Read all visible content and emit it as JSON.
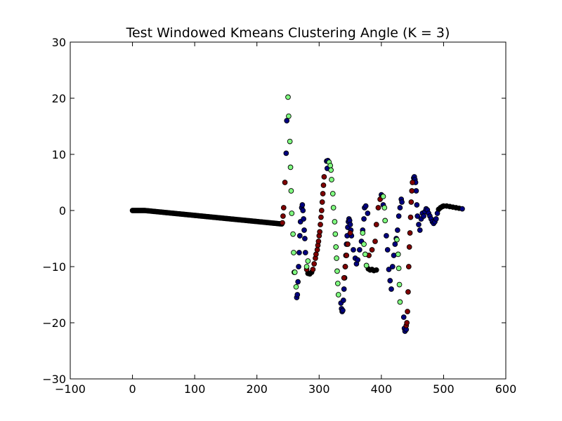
{
  "chart_data": {
    "type": "scatter",
    "title": "Test Windowed Kmeans Clustering Angle (K = 3)",
    "xlabel": "",
    "ylabel": "",
    "xlim": [
      -100,
      600
    ],
    "ylim": [
      -30,
      30
    ],
    "xticks": [
      -100,
      0,
      100,
      200,
      300,
      400,
      500,
      600
    ],
    "yticks": [
      -30,
      -20,
      -10,
      0,
      10,
      20,
      30
    ],
    "xtick_labels": [
      "−100",
      "0",
      "100",
      "200",
      "300",
      "400",
      "500",
      "600"
    ],
    "ytick_labels": [
      "−30",
      "−20",
      "−10",
      "0",
      "10",
      "20",
      "30"
    ],
    "grid": false,
    "colors": {
      "cluster_black": "#000000",
      "cluster_navy": "#000080",
      "cluster_darkred": "#800000",
      "cluster_lightgreen": "#80ff80"
    },
    "series": [
      {
        "color_key": "cluster_black",
        "points": [
          [
            0,
            0.0
          ],
          [
            240,
            -2.4
          ],
          [
            282,
            -11.2
          ],
          [
            285,
            -11.3
          ],
          [
            288,
            -11.0
          ],
          [
            379,
            -10.4
          ],
          [
            382,
            -10.6
          ],
          [
            385,
            -10.5
          ],
          [
            388,
            -10.7
          ],
          [
            392,
            -10.6
          ],
          [
            492,
            0.2
          ],
          [
            495,
            0.5
          ],
          [
            498,
            0.7
          ],
          [
            500,
            0.8
          ],
          [
            505,
            0.8
          ],
          [
            510,
            0.7
          ],
          [
            515,
            0.6
          ],
          [
            520,
            0.5
          ],
          [
            525,
            0.4
          ]
        ]
      },
      {
        "color_key": "cluster_navy",
        "points": [
          [
            247,
            10.2
          ],
          [
            248,
            16.0
          ],
          [
            264,
            -15.5
          ],
          [
            265,
            -15.0
          ],
          [
            266,
            -12.7
          ],
          [
            267,
            -10.0
          ],
          [
            268,
            -7.5
          ],
          [
            269,
            -4.5
          ],
          [
            270,
            -2.0
          ],
          [
            272,
            0.5
          ],
          [
            273,
            1.0
          ],
          [
            274,
            0.0
          ],
          [
            275,
            -1.5
          ],
          [
            276,
            -3.5
          ],
          [
            277,
            -5.0
          ],
          [
            278,
            -7.5
          ],
          [
            312,
            8.8
          ],
          [
            313,
            7.5
          ],
          [
            314,
            8.9
          ],
          [
            335,
            -16.5
          ],
          [
            336,
            -17.5
          ],
          [
            337,
            -18.0
          ],
          [
            338,
            -17.8
          ],
          [
            339,
            -16.0
          ],
          [
            340,
            -14.0
          ],
          [
            341,
            -12.0
          ],
          [
            342,
            -10.0
          ],
          [
            343,
            -8.0
          ],
          [
            344,
            -6.0
          ],
          [
            345,
            -4.5
          ],
          [
            346,
            -3.0
          ],
          [
            347,
            -2.0
          ],
          [
            348,
            -1.5
          ],
          [
            349,
            -1.8
          ],
          [
            350,
            -2.5
          ],
          [
            351,
            -3.5
          ],
          [
            352,
            -4.5
          ],
          [
            355,
            -7.0
          ],
          [
            358,
            -8.5
          ],
          [
            360,
            -9.5
          ],
          [
            362,
            -8.8
          ],
          [
            365,
            -7.0
          ],
          [
            368,
            -5.5
          ],
          [
            370,
            -3.5
          ],
          [
            372,
            -1.5
          ],
          [
            373,
            0.5
          ],
          [
            375,
            0.8
          ],
          [
            378,
            -0.5
          ],
          [
            400,
            2.8
          ],
          [
            402,
            2.5
          ],
          [
            403,
            1.0
          ],
          [
            408,
            -4.5
          ],
          [
            410,
            -7.0
          ],
          [
            412,
            -10.5
          ],
          [
            414,
            -12.5
          ],
          [
            416,
            -14.0
          ],
          [
            418,
            -10.0
          ],
          [
            420,
            -8.0
          ],
          [
            422,
            -6.0
          ],
          [
            424,
            -5.0
          ],
          [
            426,
            -3.5
          ],
          [
            428,
            -1.0
          ],
          [
            430,
            0.5
          ],
          [
            432,
            2.0
          ],
          [
            433,
            1.5
          ],
          [
            436,
            -19.0
          ],
          [
            437,
            -21.0
          ],
          [
            438,
            -21.5
          ],
          [
            440,
            -21.2
          ],
          [
            452,
            5.8
          ],
          [
            453,
            6.0
          ],
          [
            454,
            5.5
          ],
          [
            455,
            5.0
          ],
          [
            456,
            3.5
          ],
          [
            457,
            1.0
          ],
          [
            458,
            -1.0
          ],
          [
            460,
            -2.5
          ],
          [
            462,
            -3.5
          ],
          [
            464,
            -1.5
          ],
          [
            466,
            -0.5
          ],
          [
            468,
            -1.0
          ],
          [
            470,
            -0.2
          ],
          [
            472,
            0.3
          ],
          [
            474,
            0.1
          ],
          [
            476,
            -0.5
          ],
          [
            478,
            -1.0
          ],
          [
            480,
            -1.5
          ],
          [
            482,
            -2.0
          ],
          [
            484,
            -2.3
          ],
          [
            486,
            -2.0
          ],
          [
            488,
            -1.5
          ],
          [
            490,
            -0.5
          ],
          [
            530,
            0.3
          ]
        ]
      },
      {
        "color_key": "cluster_darkred",
        "points": [
          [
            241,
            -2.2
          ],
          [
            242,
            -1.0
          ],
          [
            243,
            0.5
          ],
          [
            245,
            5.0
          ],
          [
            280,
            -10.5
          ],
          [
            290,
            -10.5
          ],
          [
            292,
            -9.5
          ],
          [
            294,
            -8.5
          ],
          [
            295,
            -7.8
          ],
          [
            297,
            -7.0
          ],
          [
            298,
            -6.2
          ],
          [
            299,
            -5.5
          ],
          [
            300,
            -4.5
          ],
          [
            301,
            -3.8
          ],
          [
            302,
            -2.5
          ],
          [
            303,
            -1.2
          ],
          [
            304,
            0.0
          ],
          [
            305,
            1.5
          ],
          [
            306,
            3.0
          ],
          [
            307,
            4.5
          ],
          [
            308,
            6.0
          ],
          [
            340,
            -12.0
          ],
          [
            342,
            -10.0
          ],
          [
            344,
            -8.0
          ],
          [
            346,
            -6.0
          ],
          [
            350,
            -4.0
          ],
          [
            380,
            -8.0
          ],
          [
            385,
            -7.0
          ],
          [
            390,
            -5.5
          ],
          [
            392,
            -2.5
          ],
          [
            395,
            0.5
          ],
          [
            398,
            2.0
          ],
          [
            440,
            -20.5
          ],
          [
            441,
            -20.0
          ],
          [
            442,
            -18.0
          ],
          [
            443,
            -14.5
          ],
          [
            444,
            -10.0
          ],
          [
            445,
            -6.5
          ],
          [
            446,
            -4.0
          ],
          [
            447,
            -1.2
          ],
          [
            448,
            1.5
          ],
          [
            449,
            3.5
          ],
          [
            450,
            5.0
          ]
        ]
      },
      {
        "color_key": "cluster_lightgreen",
        "points": [
          [
            250,
            20.2
          ],
          [
            251,
            16.8
          ],
          [
            253,
            12.3
          ],
          [
            254,
            7.7
          ],
          [
            255,
            3.5
          ],
          [
            256,
            -0.5
          ],
          [
            258,
            -4.2
          ],
          [
            259,
            -7.5
          ],
          [
            260,
            -11.0
          ],
          [
            261,
            -11.0
          ],
          [
            263,
            -13.6
          ],
          [
            280,
            -10.0
          ],
          [
            282,
            -9.0
          ],
          [
            316,
            8.6
          ],
          [
            318,
            8.0
          ],
          [
            319,
            7.2
          ],
          [
            320,
            5.5
          ],
          [
            322,
            3.0
          ],
          [
            323,
            0.5
          ],
          [
            325,
            -2.0
          ],
          [
            326,
            -4.2
          ],
          [
            327,
            -6.5
          ],
          [
            328,
            -8.5
          ],
          [
            329,
            -10.8
          ],
          [
            330,
            -13.0
          ],
          [
            331,
            -15.0
          ],
          [
            370,
            -4.0
          ],
          [
            372,
            -6.0
          ],
          [
            374,
            -7.8
          ],
          [
            376,
            -9.8
          ],
          [
            403,
            2.5
          ],
          [
            405,
            0.5
          ],
          [
            406,
            -1.8
          ],
          [
            425,
            -5.2
          ],
          [
            427,
            -7.8
          ],
          [
            428,
            -10.3
          ],
          [
            429,
            -13.2
          ],
          [
            430,
            -16.3
          ]
        ]
      }
    ]
  }
}
